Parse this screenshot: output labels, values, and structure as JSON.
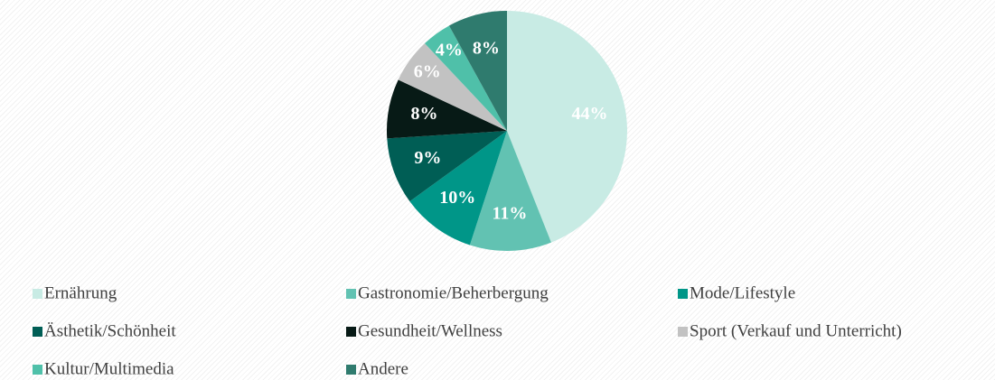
{
  "chart_data": {
    "type": "pie",
    "categories": [
      "Ernährung",
      "Gastronomie/Beherbergung",
      "Mode/Lifestyle",
      "Ästhetik/Schönheit",
      "Gesundheit/Wellness",
      "Sport (Verkauf und Unterricht)",
      "Kultur/Multimedia",
      "Andere"
    ],
    "values": [
      44,
      11,
      10,
      9,
      8,
      6,
      4,
      8
    ],
    "value_labels": [
      "44%",
      "11%",
      "10%",
      "9%",
      "8%",
      "6%",
      "4%",
      "8%"
    ],
    "colors": [
      "#c8ebe4",
      "#62c2b2",
      "#009688",
      "#005e55",
      "#071a16",
      "#c2c2c2",
      "#4fc0a9",
      "#2f7b6e"
    ],
    "legend": "bottom"
  }
}
